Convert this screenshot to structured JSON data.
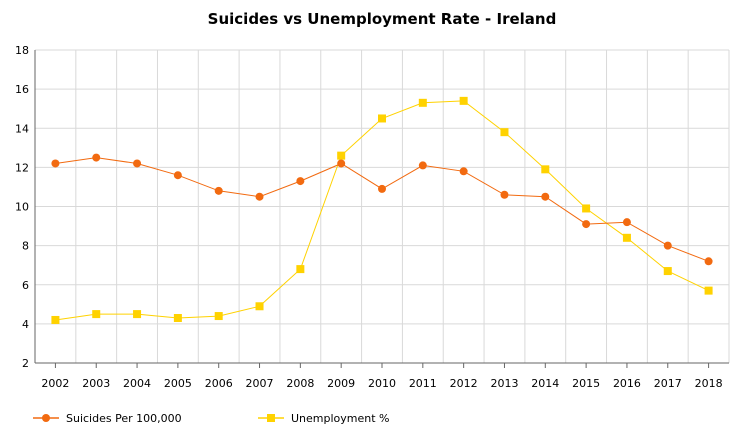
{
  "chart_data": {
    "type": "line",
    "title": "Suicides vs Unemployment Rate - Ireland",
    "xlabel": "",
    "ylabel": "",
    "categories": [
      "2002",
      "2003",
      "2004",
      "2005",
      "2006",
      "2007",
      "2008",
      "2009",
      "2010",
      "2011",
      "2012",
      "2013",
      "2014",
      "2015",
      "2016",
      "2017",
      "2018"
    ],
    "ylim": [
      2,
      18
    ],
    "yticks": [
      2,
      4,
      6,
      8,
      10,
      12,
      14,
      16,
      18
    ],
    "grid": true,
    "legend_position": "bottom-left",
    "series": [
      {
        "name": "Suicides Per 100,000",
        "color": "#f26a10",
        "marker": "circle",
        "values": [
          12.2,
          12.5,
          12.2,
          11.6,
          10.8,
          10.5,
          11.3,
          12.2,
          10.9,
          12.1,
          11.8,
          10.6,
          10.5,
          9.1,
          9.2,
          8.0,
          7.2
        ]
      },
      {
        "name": "Unemployment %",
        "color": "#ffd200",
        "marker": "square",
        "values": [
          4.2,
          4.5,
          4.5,
          4.3,
          4.4,
          4.9,
          6.8,
          12.6,
          14.5,
          15.3,
          15.4,
          13.8,
          11.9,
          9.9,
          8.4,
          6.7,
          5.7
        ]
      }
    ]
  }
}
